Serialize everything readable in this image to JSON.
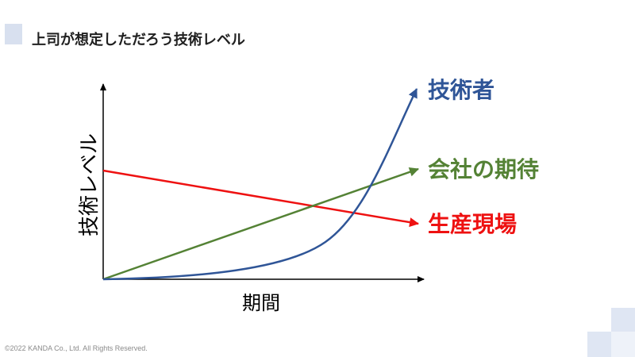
{
  "slide": {
    "title": "上司が想定しただろう技術レベル",
    "copyright": "©2022 KANDA Co., Ltd. All Rights Reserved."
  },
  "diagram": {
    "y_axis_label": "技術レベル",
    "x_axis_label": "期間",
    "lines": [
      {
        "id": "engineer",
        "label": "技術者",
        "color": "#2f5597"
      },
      {
        "id": "company",
        "label": "会社の期待",
        "color": "#548235"
      },
      {
        "id": "field",
        "label": "生産現場",
        "color": "#ee1111"
      }
    ]
  }
}
